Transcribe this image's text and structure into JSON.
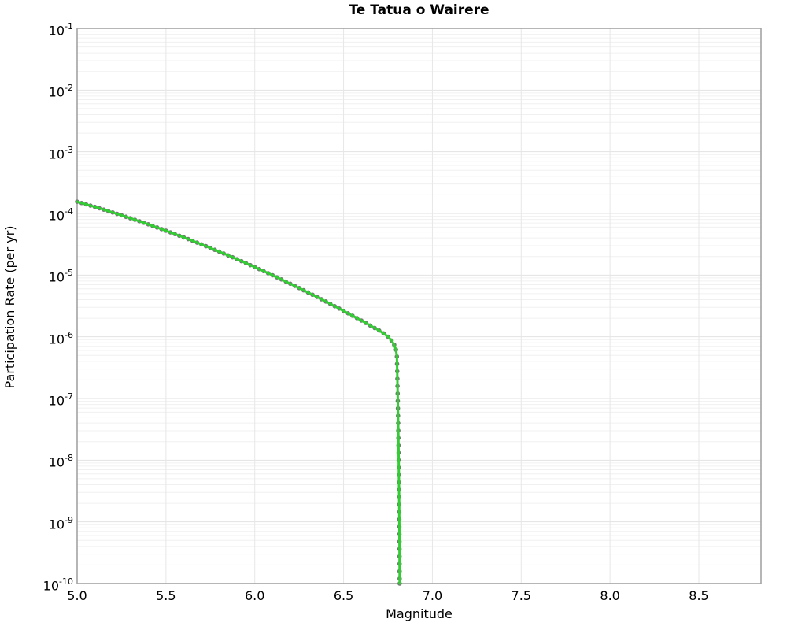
{
  "chart_data": {
    "type": "line",
    "title": "Te Tatua o Wairere",
    "xlabel": "Magnitude",
    "ylabel": "Participation Rate (per yr)",
    "xlim": [
      5.0,
      8.85
    ],
    "ylog_lim": [
      -10,
      -1
    ],
    "x_ticks": [
      "5.0",
      "5.5",
      "6.0",
      "6.5",
      "7.0",
      "7.5",
      "8.0",
      "8.5"
    ],
    "y_tick_exponents": [
      -1,
      -2,
      -3,
      -4,
      -5,
      -6,
      -7,
      -8,
      -9,
      -10
    ],
    "grid": true,
    "legend": false,
    "colors": {
      "line": "#32cd32",
      "marker": "#757575",
      "spine": "#a3a3a3",
      "grid_major": "#e2e2e2",
      "grid_minor": "#f0f0f0",
      "grid_vertical": "#e7e7e7"
    },
    "series": [
      {
        "name": "participation-rate",
        "description": "Rate decreases log-linearly from ~1.5e-4/yr at M5.0 to ~6e-7/yr at M6.8, then drops nearly vertically to 1e-10/yr at M~6.82",
        "points_m_log10rate": [
          [
            5.0,
            -3.81
          ],
          [
            5.025,
            -3.831
          ],
          [
            5.05,
            -3.852
          ],
          [
            5.075,
            -3.873
          ],
          [
            5.1,
            -3.894
          ],
          [
            5.125,
            -3.916
          ],
          [
            5.15,
            -3.938
          ],
          [
            5.175,
            -3.961
          ],
          [
            5.2,
            -3.984
          ],
          [
            5.225,
            -4.007
          ],
          [
            5.25,
            -4.03
          ],
          [
            5.275,
            -4.054
          ],
          [
            5.3,
            -4.078
          ],
          [
            5.325,
            -4.102
          ],
          [
            5.35,
            -4.126
          ],
          [
            5.375,
            -4.151
          ],
          [
            5.4,
            -4.176
          ],
          [
            5.425,
            -4.202
          ],
          [
            5.45,
            -4.228
          ],
          [
            5.475,
            -4.254
          ],
          [
            5.5,
            -4.28
          ],
          [
            5.525,
            -4.307
          ],
          [
            5.55,
            -4.334
          ],
          [
            5.575,
            -4.361
          ],
          [
            5.6,
            -4.388
          ],
          [
            5.625,
            -4.416
          ],
          [
            5.65,
            -4.444
          ],
          [
            5.675,
            -4.473
          ],
          [
            5.7,
            -4.502
          ],
          [
            5.725,
            -4.531
          ],
          [
            5.75,
            -4.56
          ],
          [
            5.775,
            -4.59
          ],
          [
            5.8,
            -4.62
          ],
          [
            5.825,
            -4.65
          ],
          [
            5.85,
            -4.68
          ],
          [
            5.875,
            -4.711
          ],
          [
            5.9,
            -4.742
          ],
          [
            5.925,
            -4.774
          ],
          [
            5.95,
            -4.806
          ],
          [
            5.975,
            -4.838
          ],
          [
            6.0,
            -4.87
          ],
          [
            6.025,
            -4.903
          ],
          [
            6.05,
            -4.936
          ],
          [
            6.075,
            -4.969
          ],
          [
            6.1,
            -5.002
          ],
          [
            6.125,
            -5.036
          ],
          [
            6.15,
            -5.07
          ],
          [
            6.175,
            -5.105
          ],
          [
            6.2,
            -5.14
          ],
          [
            6.225,
            -5.175
          ],
          [
            6.25,
            -5.21
          ],
          [
            6.275,
            -5.246
          ],
          [
            6.3,
            -5.282
          ],
          [
            6.325,
            -5.318
          ],
          [
            6.35,
            -5.354
          ],
          [
            6.375,
            -5.391
          ],
          [
            6.4,
            -5.428
          ],
          [
            6.425,
            -5.466
          ],
          [
            6.45,
            -5.504
          ],
          [
            6.475,
            -5.542
          ],
          [
            6.5,
            -5.58
          ],
          [
            6.525,
            -5.619
          ],
          [
            6.55,
            -5.658
          ],
          [
            6.575,
            -5.697
          ],
          [
            6.6,
            -5.736
          ],
          [
            6.625,
            -5.776
          ],
          [
            6.65,
            -5.816
          ],
          [
            6.675,
            -5.857
          ],
          [
            6.7,
            -5.898
          ],
          [
            6.725,
            -5.944
          ],
          [
            6.75,
            -5.998
          ],
          [
            6.77,
            -6.06
          ],
          [
            6.785,
            -6.13
          ],
          [
            6.795,
            -6.21
          ],
          [
            6.8,
            -6.32
          ],
          [
            6.801,
            -6.44
          ],
          [
            6.802,
            -6.56
          ],
          [
            6.8028,
            -6.68
          ],
          [
            6.8036,
            -6.8
          ],
          [
            6.8044,
            -6.92
          ],
          [
            6.8052,
            -7.04
          ],
          [
            6.806,
            -7.16
          ],
          [
            6.8067,
            -7.28
          ],
          [
            6.8074,
            -7.4
          ],
          [
            6.808,
            -7.52
          ],
          [
            6.8086,
            -7.64
          ],
          [
            6.8092,
            -7.76
          ],
          [
            6.8098,
            -7.88
          ],
          [
            6.8104,
            -8.0
          ],
          [
            6.8109,
            -8.12
          ],
          [
            6.8114,
            -8.24
          ],
          [
            6.8119,
            -8.36
          ],
          [
            6.8123,
            -8.48
          ],
          [
            6.8127,
            -8.6
          ],
          [
            6.8131,
            -8.72
          ],
          [
            6.8134,
            -8.84
          ],
          [
            6.8137,
            -8.96
          ],
          [
            6.814,
            -9.08
          ],
          [
            6.8143,
            -9.2
          ],
          [
            6.8146,
            -9.32
          ],
          [
            6.8148,
            -9.44
          ],
          [
            6.815,
            -9.56
          ],
          [
            6.8152,
            -9.68
          ],
          [
            6.8154,
            -9.8
          ],
          [
            6.8156,
            -9.92
          ],
          [
            6.8158,
            -10.0
          ]
        ]
      }
    ]
  }
}
